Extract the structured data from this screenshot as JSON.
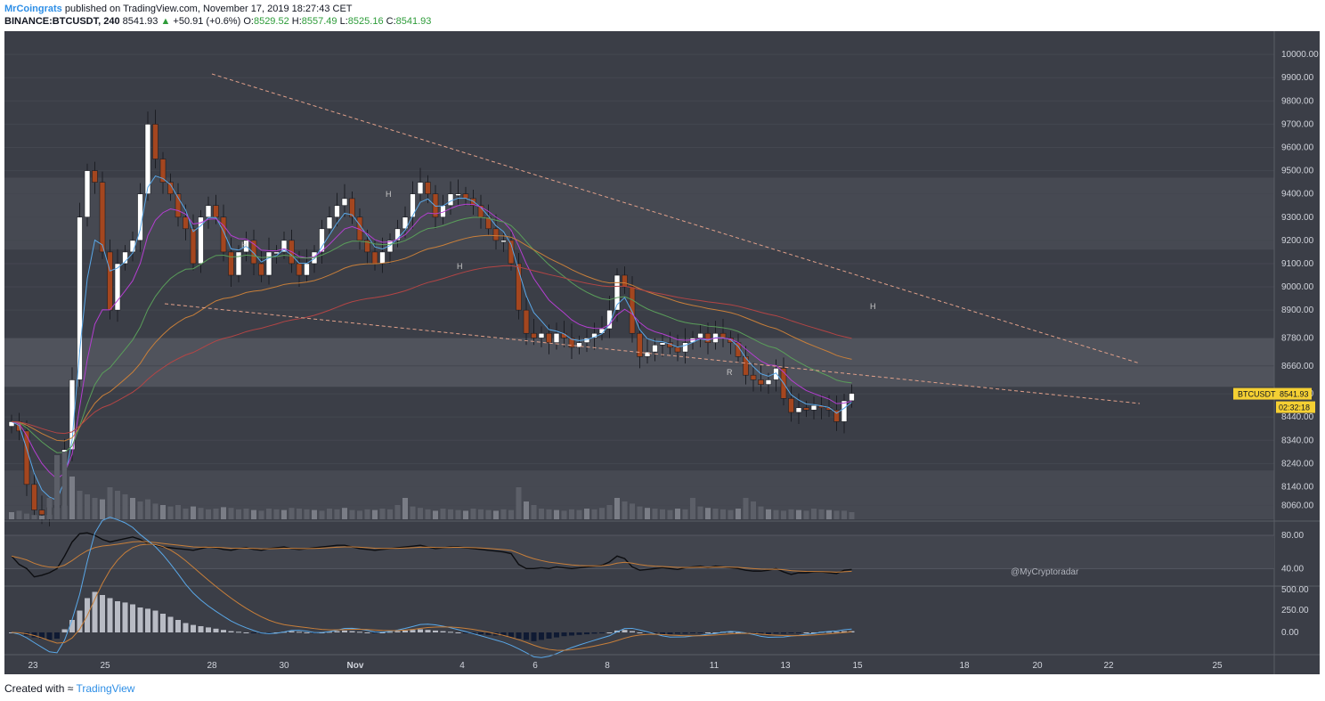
{
  "header": {
    "author": "MrCoingrats",
    "published": "published on TradingView.com, November 17, 2019 18:27:43 CET",
    "symbol": "BINANCE:BTCUSDT, 240",
    "last": "8541.93",
    "change_arrow": "▲",
    "change": "+50.91 (+0.6%)",
    "o_label": "O:",
    "o_value": "8529.52",
    "h_label": "H:",
    "h_value": "8557.49",
    "l_label": "L:",
    "l_value": "8525.16",
    "c_label": "C:",
    "c_value": "8541.93"
  },
  "footer": {
    "created_with": "Created with",
    "brand": "TradingView"
  },
  "colors": {
    "background": "#3b3e47",
    "up_candle": "#ffffff",
    "down_candle": "#a4461f",
    "ema_fast": "#5aa8e8",
    "ema_mid": "#b43fd1",
    "ema_slow": "#5a9e5a",
    "ema_long": "#c87f3a",
    "ema_200": "#b44545"
  },
  "chart_data": {
    "type": "candlestick",
    "symbol": "BTCUSDT",
    "timeframe": "240",
    "price_badge": "8541.93",
    "timer_badge": "02:32:18",
    "watermark": "@MyCryptoradar",
    "y_ticks": [
      "10000.00",
      "9900.00",
      "9800.00",
      "9700.00",
      "9600.00",
      "9500.00",
      "9400.00",
      "9300.00",
      "9200.00",
      "9100.00",
      "9000.00",
      "8900.00",
      "8780.00",
      "8660.00",
      "8540.00",
      "8440.00",
      "8340.00",
      "8240.00",
      "8140.00",
      "8060.00"
    ],
    "x_ticks": [
      "23",
      "25",
      "28",
      "30",
      "Nov",
      "4",
      "6",
      "8",
      "11",
      "13",
      "15",
      "18",
      "20",
      "22",
      "25"
    ],
    "rsi_ticks": [
      "80.00",
      "40.00"
    ],
    "macd_ticks": [
      "500.00",
      "250.00",
      "0.00"
    ],
    "pivot_labels": [
      "H",
      "H",
      "H",
      "H",
      "R"
    ],
    "closes": [
      8420,
      8380,
      8150,
      8040,
      8020,
      8050,
      8060,
      8300,
      8600,
      9300,
      9500,
      9450,
      9150,
      8900,
      9100,
      9150,
      9200,
      9400,
      9700,
      9550,
      9450,
      9400,
      9300,
      9250,
      9100,
      9300,
      9350,
      9300,
      9150,
      9050,
      9150,
      9200,
      9100,
      9050,
      9150,
      9150,
      9200,
      9100,
      9050,
      9100,
      9150,
      9250,
      9300,
      9350,
      9380,
      9300,
      9200,
      9150,
      9100,
      9150,
      9200,
      9250,
      9300,
      9400,
      9450,
      9400,
      9300,
      9350,
      9400,
      9400,
      9380,
      9350,
      9300,
      9250,
      9200,
      9200,
      9100,
      8900,
      8800,
      8780,
      8800,
      8760,
      8800,
      8780,
      8740,
      8760,
      8780,
      8800,
      8820,
      8900,
      9050,
      9000,
      8800,
      8700,
      8720,
      8750,
      8760,
      8740,
      8720,
      8760,
      8780,
      8800,
      8760,
      8800,
      8780,
      8760,
      8700,
      8620,
      8600,
      8580,
      8600,
      8650,
      8520,
      8460,
      8480,
      8470,
      8490,
      8480,
      8470,
      8420,
      8510,
      8541.93
    ],
    "volume": [
      10,
      12,
      8,
      6,
      5,
      30,
      90,
      95,
      60,
      40,
      35,
      30,
      28,
      45,
      40,
      35,
      30,
      25,
      28,
      22,
      20,
      18,
      20,
      15,
      18,
      16,
      14,
      15,
      17,
      16,
      14,
      15,
      13,
      12,
      15,
      14,
      13,
      16,
      15,
      14,
      13,
      12,
      15,
      14,
      16,
      13,
      12,
      14,
      13,
      15,
      14,
      20,
      30,
      18,
      16,
      14,
      12,
      15,
      14,
      13,
      12,
      15,
      14,
      13,
      12,
      14,
      13,
      45,
      25,
      20,
      15,
      14,
      13,
      12,
      14,
      13,
      15,
      14,
      16,
      20,
      30,
      25,
      22,
      18,
      16,
      15,
      14,
      13,
      15,
      14,
      30,
      18,
      16,
      15,
      14,
      13,
      15,
      30,
      25,
      18,
      14,
      13,
      12,
      14,
      13,
      12,
      15,
      14,
      13,
      12,
      12,
      10
    ],
    "rsi": [
      55,
      45,
      40,
      30,
      32,
      35,
      40,
      55,
      72,
      82,
      83,
      80,
      75,
      72,
      74,
      76,
      78,
      75,
      70,
      68,
      66,
      65,
      64,
      63,
      62,
      64,
      66,
      65,
      63,
      62,
      64,
      65,
      63,
      62,
      64,
      65,
      66,
      64,
      63,
      64,
      65,
      66,
      67,
      68,
      68,
      66,
      64,
      63,
      62,
      63,
      64,
      65,
      66,
      67,
      68,
      66,
      64,
      65,
      66,
      66,
      65,
      64,
      63,
      62,
      61,
      60,
      58,
      45,
      40,
      40,
      41,
      40,
      42,
      41,
      40,
      41,
      42,
      43,
      44,
      48,
      55,
      52,
      42,
      38,
      39,
      40,
      41,
      40,
      39,
      41,
      42,
      43,
      41,
      43,
      42,
      41,
      40,
      38,
      37,
      37,
      38,
      40,
      36,
      33,
      35,
      35,
      36,
      36,
      35,
      34,
      38,
      39
    ],
    "macd_hist": [
      0,
      -2,
      -5,
      -8,
      -10,
      -12,
      -10,
      5,
      20,
      35,
      55,
      65,
      60,
      55,
      50,
      48,
      45,
      40,
      38,
      35,
      30,
      25,
      20,
      15,
      12,
      10,
      8,
      6,
      4,
      2,
      1,
      0,
      -1,
      -2,
      -1,
      0,
      1,
      2,
      1,
      0,
      -1,
      0,
      1,
      2,
      3,
      2,
      1,
      0,
      -1,
      0,
      1,
      2,
      3,
      4,
      5,
      4,
      3,
      2,
      1,
      0,
      -1,
      -2,
      -3,
      -4,
      -5,
      -6,
      -8,
      -10,
      -12,
      -14,
      -12,
      -10,
      -8,
      -6,
      -5,
      -4,
      -3,
      -2,
      -1,
      0,
      3,
      4,
      2,
      0,
      -1,
      -2,
      -3,
      -3,
      -2,
      -2,
      -1,
      -1,
      0,
      0,
      1,
      1,
      0,
      -1,
      -2,
      -3,
      -3,
      -2,
      -2,
      -1,
      -1,
      0,
      0,
      1,
      1,
      1,
      2,
      2
    ]
  }
}
